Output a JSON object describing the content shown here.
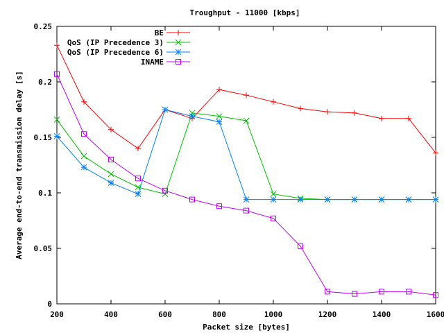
{
  "chart_data": {
    "type": "line",
    "title": "Troughput - 11000 [kbps]",
    "xlabel": "Packet size [bytes]",
    "ylabel": "Average end-to-end transmission delay [s]",
    "xlim": [
      200,
      1600
    ],
    "ylim": [
      0,
      0.25
    ],
    "xticks": [
      200,
      400,
      600,
      800,
      1000,
      1200,
      1400,
      1600
    ],
    "yticks": [
      0,
      0.05,
      0.1,
      0.15,
      0.2,
      0.25
    ],
    "xtick_labels": [
      "200",
      "400",
      "600",
      "800",
      "1000",
      "1200",
      "1400",
      "1600"
    ],
    "ytick_labels": [
      "0",
      "0.05",
      "0.1",
      "0.15",
      "0.2",
      "0.25"
    ],
    "grid": false,
    "legend_position": "top-right",
    "series": [
      {
        "name": "BE",
        "color": "#ff0000",
        "marker": "plus",
        "x": [
          200,
          300,
          400,
          500,
          600,
          700,
          800,
          900,
          1000,
          1100,
          1200,
          1300,
          1400,
          1500,
          1600
        ],
        "y": [
          0.233,
          0.182,
          0.157,
          0.14,
          0.175,
          0.167,
          0.193,
          0.188,
          0.182,
          0.176,
          0.173,
          0.172,
          0.167,
          0.167,
          0.136
        ]
      },
      {
        "name": "QoS (IP Precedence 3)",
        "color": "#00c000",
        "marker": "cross",
        "x": [
          200,
          300,
          400,
          500,
          600,
          700,
          800,
          900,
          1000,
          1100,
          1200,
          1300,
          1400,
          1500,
          1600
        ],
        "y": [
          0.166,
          0.133,
          0.117,
          0.105,
          0.099,
          0.172,
          0.169,
          0.165,
          0.099,
          0.095,
          0.094,
          0.094,
          0.094,
          0.094,
          0.094
        ]
      },
      {
        "name": "QoS (IP Precedence 6)",
        "color": "#0080ff",
        "marker": "star",
        "x": [
          200,
          300,
          400,
          500,
          600,
          700,
          800,
          900,
          1000,
          1100,
          1200,
          1300,
          1400,
          1500,
          1600
        ],
        "y": [
          0.151,
          0.123,
          0.109,
          0.099,
          0.175,
          0.169,
          0.164,
          0.094,
          0.094,
          0.094,
          0.094,
          0.094,
          0.094,
          0.094,
          0.094
        ]
      },
      {
        "name": "INAME",
        "color": "#c000ff",
        "marker": "square",
        "x": [
          200,
          300,
          400,
          500,
          600,
          700,
          800,
          900,
          1000,
          1100,
          1200,
          1300,
          1400,
          1500,
          1600
        ],
        "y": [
          0.207,
          0.153,
          0.13,
          0.113,
          0.102,
          0.094,
          0.088,
          0.084,
          0.077,
          0.052,
          0.011,
          0.009,
          0.011,
          0.011,
          0.008
        ]
      }
    ]
  }
}
